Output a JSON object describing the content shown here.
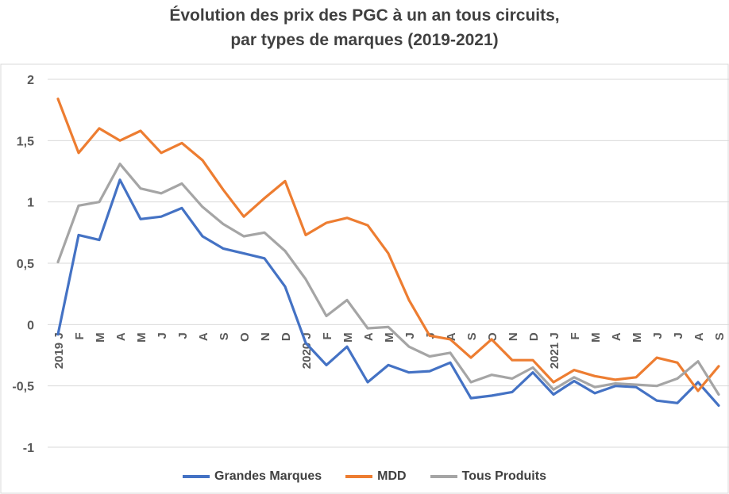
{
  "chart_data": {
    "type": "line",
    "title_lines": [
      "Évolution des prix des PGC à un an tous circuits,",
      "par types de marques (2019-2021)"
    ],
    "x_labels": [
      "2019 J",
      "F",
      "M",
      "A",
      "M",
      "J",
      "J",
      "A",
      "S",
      "O",
      "N",
      "D",
      "2020 J",
      "F",
      "M",
      "A",
      "M",
      "J",
      "J",
      "A",
      "S",
      "O",
      "N",
      "D",
      "2021 J",
      "F",
      "M",
      "A",
      "M",
      "J",
      "J",
      "A",
      "S"
    ],
    "ylim": [
      -1,
      2
    ],
    "y_ticks": [
      2,
      1.5,
      1,
      0.5,
      0,
      -0.5,
      -1
    ],
    "y_tick_labels": [
      "2",
      "1,5",
      "1",
      "0,5",
      "0",
      "-0,5",
      "-1"
    ],
    "grid": true,
    "legend_position": "bottom",
    "series": [
      {
        "name": "Grandes Marques",
        "color": "#4472C4",
        "values": [
          -0.08,
          0.73,
          0.69,
          1.18,
          0.86,
          0.88,
          0.95,
          0.72,
          0.62,
          0.58,
          0.54,
          0.31,
          -0.15,
          -0.33,
          -0.18,
          -0.47,
          -0.33,
          -0.39,
          -0.38,
          -0.31,
          -0.6,
          -0.58,
          -0.55,
          -0.39,
          -0.57,
          -0.46,
          -0.56,
          -0.5,
          -0.51,
          -0.62,
          -0.64,
          -0.47,
          -0.66
        ]
      },
      {
        "name": "MDD",
        "color": "#ED7D31",
        "values": [
          1.84,
          1.4,
          1.6,
          1.5,
          1.58,
          1.4,
          1.48,
          1.34,
          1.1,
          0.88,
          1.03,
          1.17,
          0.73,
          0.83,
          0.87,
          0.81,
          0.58,
          0.2,
          -0.09,
          -0.12,
          -0.27,
          -0.12,
          -0.29,
          -0.29,
          -0.47,
          -0.37,
          -0.42,
          -0.45,
          -0.43,
          -0.27,
          -0.31,
          -0.54,
          -0.34
        ]
      },
      {
        "name": "Tous Produits",
        "color": "#A5A5A5",
        "values": [
          0.51,
          0.97,
          1.0,
          1.31,
          1.11,
          1.07,
          1.15,
          0.96,
          0.82,
          0.72,
          0.75,
          0.6,
          0.37,
          0.07,
          0.2,
          -0.03,
          -0.02,
          -0.18,
          -0.26,
          -0.23,
          -0.47,
          -0.41,
          -0.44,
          -0.35,
          -0.53,
          -0.43,
          -0.51,
          -0.48,
          -0.49,
          -0.5,
          -0.44,
          -0.3,
          -0.57
        ]
      }
    ]
  }
}
